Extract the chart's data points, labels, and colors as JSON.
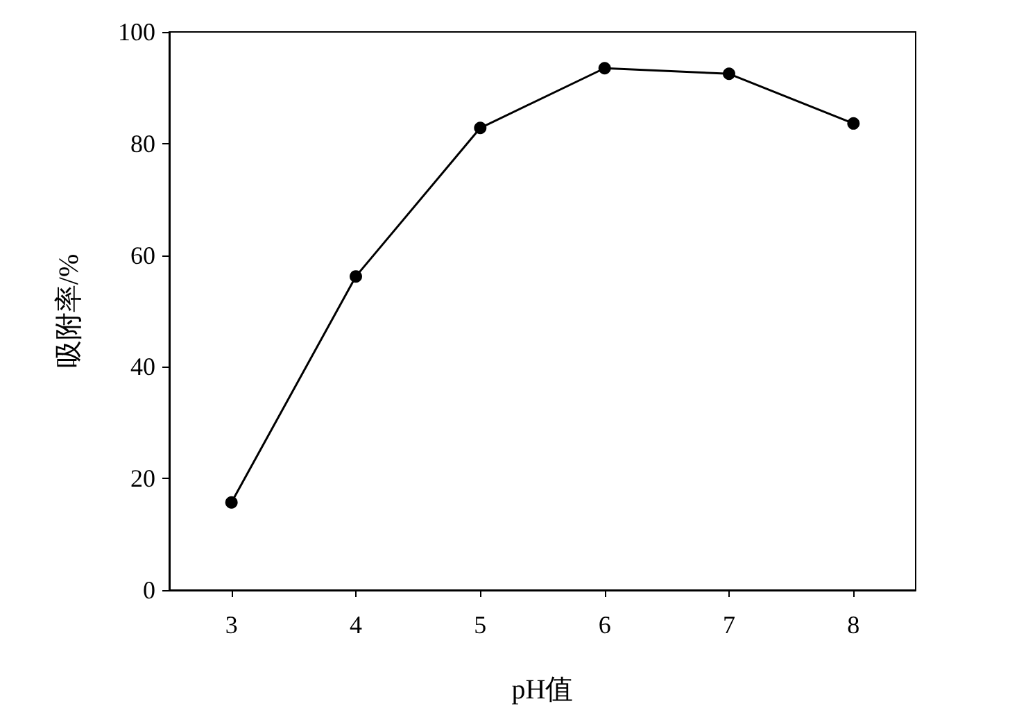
{
  "chart_data": {
    "type": "line",
    "xlabel": "pH值",
    "ylabel": "吸附率/%",
    "x": [
      3,
      4,
      5,
      6,
      7,
      8
    ],
    "series": [
      {
        "color": "#000000",
        "values": [
          15.7,
          56.2,
          82.8,
          93.5,
          92.5,
          83.6
        ]
      }
    ],
    "xlim": [
      2.5,
      8.5
    ],
    "xticks": [
      3,
      4,
      5,
      6,
      7,
      8
    ],
    "ylim": [
      0,
      100
    ],
    "yticks": [
      0,
      20,
      40,
      60,
      80,
      100
    ],
    "grid": false,
    "marker": "circle",
    "line_style": "solid"
  }
}
